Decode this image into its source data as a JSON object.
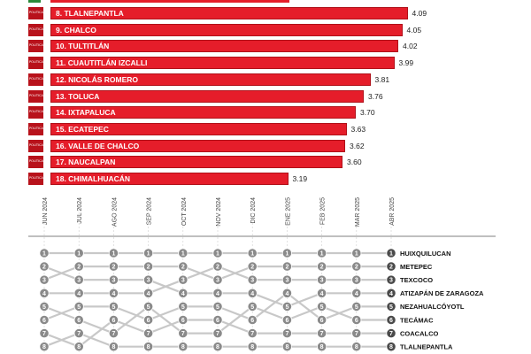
{
  "bar_chart": {
    "logo_text": "POLITICA",
    "rows": [
      {
        "label": "8. TLALNEPANTLA",
        "value": "4.09"
      },
      {
        "label": "9. CHALCO",
        "value": "4.05"
      },
      {
        "label": "10. TULTITLÁN",
        "value": "4.02"
      },
      {
        "label": "11. CUAUTITLÁN IZCALLI",
        "value": "3.99"
      },
      {
        "label": "12. NICOLÁS ROMERO",
        "value": "3.81"
      },
      {
        "label": "13. TOLUCA",
        "value": "3.76"
      },
      {
        "label": "14. IXTAPALUCA",
        "value": "3.70"
      },
      {
        "label": "15. ECATEPEC",
        "value": "3.63"
      },
      {
        "label": "16. VALLE DE CHALCO",
        "value": "3.62"
      },
      {
        "label": "17. NAUCALPAN",
        "value": "3.60"
      },
      {
        "label": "18. CHIMALHUACÁN",
        "value": "3.19"
      }
    ]
  },
  "chart_data": [
    {
      "type": "bar",
      "orientation": "horizontal",
      "categories": [
        "8. TLALNEPANTLA",
        "9. CHALCO",
        "10. TULTITLÁN",
        "11. CUAUTITLÁN IZCALLI",
        "12. NICOLÁS ROMERO",
        "13. TOLUCA",
        "14. IXTAPALUCA",
        "15. ECATEPEC",
        "16. VALLE DE CHALCO",
        "17. NAUCALPAN",
        "18. CHIMALHUACÁN"
      ],
      "values": [
        4.09,
        4.05,
        4.02,
        3.99,
        3.81,
        3.76,
        3.7,
        3.63,
        3.62,
        3.6,
        3.19
      ],
      "bar_color": "#e51d2a"
    },
    {
      "type": "bump",
      "months": [
        "JUN 2024",
        "JUL 2024",
        "AGO 2024",
        "SEP 2024",
        "OCT 2024",
        "NOV 2024",
        "DIC 2024",
        "ENE 2025",
        "FEB 2025",
        "MAR 2025",
        "ABR 2025"
      ],
      "ranks_shown": [
        1,
        2,
        3,
        4,
        5,
        6,
        7,
        8
      ],
      "final_order": [
        "HUIXQUILUCAN",
        "METEPEC",
        "TEXCOCO",
        "ATIZAPÁN DE ZARAGOZA",
        "NEZAHUALCÓYOTL",
        "TECÁMAC",
        "COACALCO",
        "TLALNEPANTLA"
      ],
      "series": [
        {
          "name": "HUIXQUILUCAN",
          "ranks": [
            1,
            1,
            1,
            1,
            1,
            1,
            1,
            1,
            1,
            1,
            1
          ]
        },
        {
          "name": "METEPEC",
          "ranks": [
            3,
            2,
            2,
            2,
            2,
            3,
            2,
            2,
            2,
            2,
            2
          ]
        },
        {
          "name": "TEXCOCO",
          "ranks": [
            4,
            4,
            4,
            4,
            3,
            2,
            3,
            3,
            3,
            3,
            3
          ]
        },
        {
          "name": "ATIZAPÁN DE ZARAGOZA",
          "ranks": [
            2,
            3,
            3,
            3,
            4,
            4,
            4,
            5,
            4,
            4,
            4
          ]
        },
        {
          "name": "NEZAHUALCÓYOTL",
          "ranks": [
            6,
            5,
            5,
            6,
            5,
            5,
            6,
            4,
            6,
            5,
            5
          ]
        },
        {
          "name": "TECÁMAC",
          "ranks": [
            5,
            6,
            7,
            5,
            7,
            7,
            5,
            6,
            5,
            6,
            6
          ]
        },
        {
          "name": "COACALCO",
          "ranks": [
            7,
            8,
            6,
            7,
            6,
            6,
            7,
            7,
            7,
            7,
            7
          ]
        },
        {
          "name": "TLALNEPANTLA",
          "ranks": [
            8,
            7,
            8,
            8,
            8,
            8,
            8,
            8,
            8,
            8,
            8
          ]
        }
      ],
      "node_color": "#8a8a8a",
      "line_color": "#c8c8c8",
      "highlight_color": "#4a4a4a"
    }
  ]
}
